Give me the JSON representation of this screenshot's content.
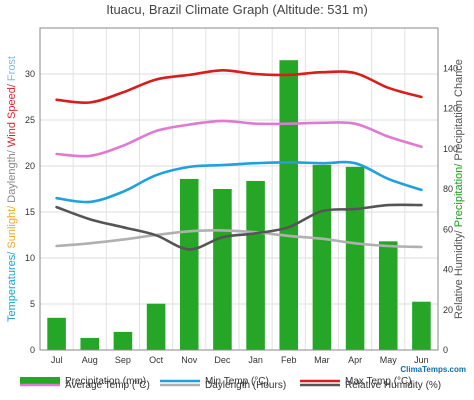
{
  "chart_data": {
    "type": "bar+line",
    "title": "Ituacu, Brazil Climate Graph (Altitude: 531 m)",
    "categories": [
      "Jul",
      "Aug",
      "Sep",
      "Oct",
      "Nov",
      "Dec",
      "Jan",
      "Feb",
      "Mar",
      "Apr",
      "May",
      "Jun"
    ],
    "left_axis": {
      "label_parts": [
        {
          "text": "Temperatures/ ",
          "color": "#1a9fd6"
        },
        {
          "text": "Sunlight/ ",
          "color": "#f5a623"
        },
        {
          "text": "Daylength/ ",
          "color": "#888888"
        },
        {
          "text": "Wind Speed/ ",
          "color": "#d9272e"
        },
        {
          "text": "Frost",
          "color": "#7fb8e6"
        }
      ],
      "ylim": [
        0,
        35
      ],
      "ticks": [
        "0",
        "5",
        "10",
        "15",
        "20",
        "25",
        "30"
      ]
    },
    "right_axis": {
      "label_parts": [
        {
          "text": "Relative Humidity/ ",
          "color": "#555555"
        },
        {
          "text": "Precipitation/ ",
          "color": "#1a9b1a"
        },
        {
          "text": "Precipitation Chance",
          "color": "#555555"
        }
      ],
      "ylim": [
        0,
        160
      ],
      "ticks": [
        "0",
        "20",
        "40",
        "60",
        "80",
        "100",
        "120",
        "140"
      ]
    },
    "bars": {
      "name": "Precipitation (mm)",
      "color": "#26a626",
      "values": [
        16,
        6,
        9,
        23,
        85,
        80,
        84,
        144,
        92,
        91,
        54,
        24
      ]
    },
    "lines": [
      {
        "name": "Min Temp (°C)",
        "color": "#1ea1dc",
        "axis": "left",
        "values": [
          16.5,
          16.1,
          17.2,
          19.0,
          19.9,
          20.1,
          20.3,
          20.4,
          20.3,
          20.3,
          18.6,
          17.4
        ]
      },
      {
        "name": "Max Temp (°C)",
        "color": "#d81d1d",
        "axis": "left",
        "values": [
          27.2,
          26.9,
          28.0,
          29.4,
          29.9,
          30.4,
          30.0,
          29.9,
          30.2,
          30.1,
          28.5,
          27.5
        ]
      },
      {
        "name": "Average Temp (°C)",
        "color": "#e07ad1",
        "axis": "left",
        "values": [
          21.3,
          21.1,
          22.2,
          23.8,
          24.5,
          24.9,
          24.6,
          24.6,
          24.7,
          24.6,
          23.2,
          22.1
        ]
      },
      {
        "name": "Daylength (Hours)",
        "color": "#b0b0b0",
        "axis": "left",
        "values": [
          11.3,
          11.6,
          12.0,
          12.5,
          12.9,
          13.0,
          12.8,
          12.4,
          12.1,
          11.6,
          11.3,
          11.2
        ]
      },
      {
        "name": "Relative Humidity (%)",
        "color": "#555555",
        "axis": "right",
        "values": [
          71,
          65,
          61,
          57,
          50,
          56,
          58,
          61,
          69,
          70,
          72,
          72
        ]
      }
    ],
    "legend": [
      {
        "label": "Precipitation (mm)",
        "kind": "bar",
        "color": "#26a626"
      },
      {
        "label": "Min Temp (°C)",
        "kind": "line",
        "color": "#1ea1dc"
      },
      {
        "label": "Max Temp (°C)",
        "kind": "line",
        "color": "#d81d1d"
      },
      {
        "label": "Average Temp (°C)",
        "kind": "line",
        "color": "#e07ad1"
      },
      {
        "label": "Daylength (Hours)",
        "kind": "line",
        "color": "#b0b0b0"
      },
      {
        "label": "Relative Humidity (%)",
        "kind": "line",
        "color": "#555555"
      }
    ],
    "grid": true,
    "legend_position": "bottom"
  },
  "branding": {
    "text": "ClimaTemps.com"
  }
}
